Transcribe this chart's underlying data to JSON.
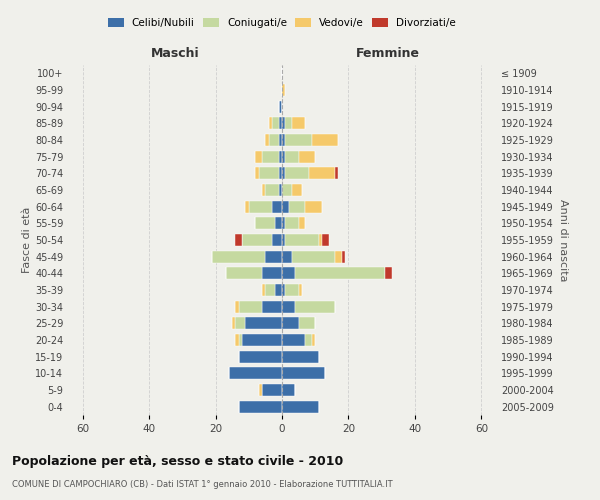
{
  "age_groups": [
    "0-4",
    "5-9",
    "10-14",
    "15-19",
    "20-24",
    "25-29",
    "30-34",
    "35-39",
    "40-44",
    "45-49",
    "50-54",
    "55-59",
    "60-64",
    "65-69",
    "70-74",
    "75-79",
    "80-84",
    "85-89",
    "90-94",
    "95-99",
    "100+"
  ],
  "birth_years": [
    "2005-2009",
    "2000-2004",
    "1995-1999",
    "1990-1994",
    "1985-1989",
    "1980-1984",
    "1975-1979",
    "1970-1974",
    "1965-1969",
    "1960-1964",
    "1955-1959",
    "1950-1954",
    "1945-1949",
    "1940-1944",
    "1935-1939",
    "1930-1934",
    "1925-1929",
    "1920-1924",
    "1915-1919",
    "1910-1914",
    "≤ 1909"
  ],
  "male_celibi": [
    13,
    6,
    16,
    13,
    12,
    11,
    6,
    2,
    6,
    5,
    3,
    2,
    3,
    1,
    1,
    1,
    1,
    1,
    1,
    0,
    0
  ],
  "male_coniugati": [
    0,
    0,
    0,
    0,
    1,
    3,
    7,
    3,
    11,
    16,
    9,
    6,
    7,
    4,
    6,
    5,
    3,
    2,
    0,
    0,
    0
  ],
  "male_vedovi": [
    0,
    1,
    0,
    0,
    1,
    1,
    1,
    1,
    0,
    0,
    0,
    0,
    1,
    1,
    1,
    2,
    1,
    1,
    0,
    0,
    0
  ],
  "male_divorziati": [
    0,
    0,
    0,
    0,
    0,
    0,
    0,
    0,
    0,
    0,
    2,
    0,
    0,
    0,
    0,
    0,
    0,
    0,
    0,
    0,
    0
  ],
  "female_celibi": [
    11,
    4,
    13,
    11,
    7,
    5,
    4,
    1,
    4,
    3,
    1,
    1,
    2,
    0,
    1,
    1,
    1,
    1,
    0,
    0,
    0
  ],
  "female_coniugati": [
    0,
    0,
    0,
    0,
    2,
    5,
    12,
    4,
    27,
    13,
    10,
    4,
    5,
    3,
    7,
    4,
    8,
    2,
    0,
    0,
    0
  ],
  "female_vedovi": [
    0,
    0,
    0,
    0,
    1,
    0,
    0,
    1,
    0,
    2,
    1,
    2,
    5,
    3,
    8,
    5,
    8,
    4,
    0,
    1,
    0
  ],
  "female_divorziati": [
    0,
    0,
    0,
    0,
    0,
    0,
    0,
    0,
    2,
    1,
    2,
    0,
    0,
    0,
    1,
    0,
    0,
    0,
    0,
    0,
    0
  ],
  "color_celibi": "#3d6fa8",
  "color_coniugati": "#c5d9a0",
  "color_vedovi": "#f5c96a",
  "color_divorziati": "#c0392b",
  "title": "Popolazione per età, sesso e stato civile - 2010",
  "subtitle": "COMUNE DI CAMPOCHIARO (CB) - Dati ISTAT 1° gennaio 2010 - Elaborazione TUTTITALIA.IT",
  "xlabel_left": "Maschi",
  "xlabel_right": "Femmine",
  "ylabel_left": "Fasce di età",
  "ylabel_right": "Anni di nascita",
  "xlim": 65,
  "bg_color": "#f0f0eb",
  "grid_color": "#cccccc"
}
